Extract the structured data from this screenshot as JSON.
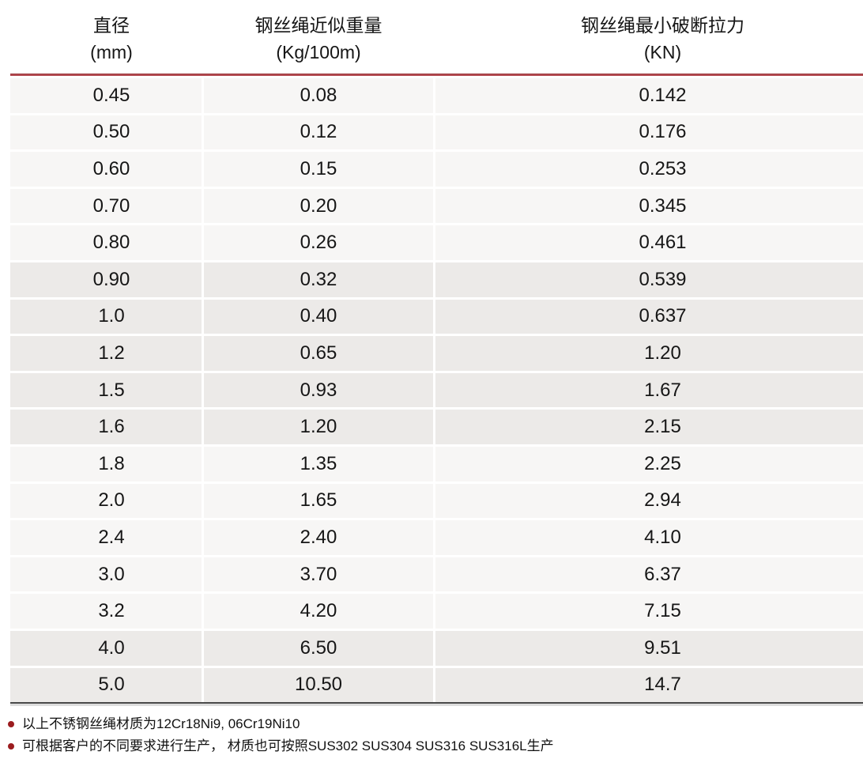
{
  "table": {
    "headers": [
      {
        "line1": "直径",
        "line2": "(mm)"
      },
      {
        "line1": "钢丝绳近似重量",
        "line2": "(Kg/100m)"
      },
      {
        "line1": "钢丝绳最小破断拉力",
        "line2": "(KN)"
      }
    ],
    "columns": [
      "diameter-mm",
      "weight-kg-per-100m",
      "min-breaking-force-kn"
    ],
    "rows": [
      [
        "0.45",
        "0.08",
        "0.142"
      ],
      [
        "0.50",
        "0.12",
        "0.176"
      ],
      [
        "0.60",
        "0.15",
        "0.253"
      ],
      [
        "0.70",
        "0.20",
        "0.345"
      ],
      [
        "0.80",
        "0.26",
        "0.461"
      ],
      [
        "0.90",
        "0.32",
        "0.539"
      ],
      [
        "1.0",
        "0.40",
        "0.637"
      ],
      [
        "1.2",
        "0.65",
        "1.20"
      ],
      [
        "1.5",
        "0.93",
        "1.67"
      ],
      [
        "1.6",
        "1.20",
        "2.15"
      ],
      [
        "1.8",
        "1.35",
        "2.25"
      ],
      [
        "2.0",
        "1.65",
        "2.94"
      ],
      [
        "2.4",
        "2.40",
        "4.10"
      ],
      [
        "3.0",
        "3.70",
        "6.37"
      ],
      [
        "3.2",
        "4.20",
        "7.15"
      ],
      [
        "4.0",
        "6.50",
        "9.51"
      ],
      [
        "5.0",
        "10.50",
        "14.7"
      ]
    ],
    "shaded_row_indices": [
      5,
      6,
      7,
      8,
      9,
      15,
      16
    ]
  },
  "notes": [
    "以上不锈钢丝绳材质为12Cr18Ni9, 06Cr19Ni10",
    "可根据客户的不同要求进行生产， 材质也可按照SUS302 SUS304 SUS316 SUS316L生产"
  ],
  "colors": {
    "header_rule": "#b2484e",
    "row_light": "#f7f6f5",
    "row_dark": "#eceae8",
    "bottom_rule": "#4b4b4b",
    "bullet": "#9b1c1f",
    "text": "#1a1a1a"
  }
}
